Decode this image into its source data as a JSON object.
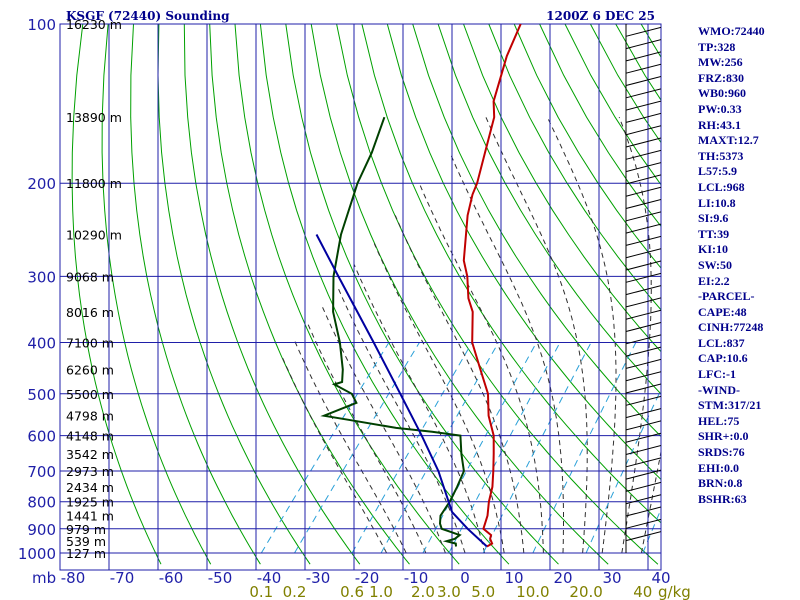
{
  "chart_data": {
    "type": "skew-t",
    "title": "KSGF (72440) Sounding",
    "valid_time": "1200Z  6 DEC 25",
    "pressure_unit_label": "mb",
    "mixing_ratio_unit_label": "g/kg",
    "pressure_ticks": [
      {
        "value": 100,
        "label": "100"
      },
      {
        "value": 200,
        "label": "200"
      },
      {
        "value": 300,
        "label": "300"
      },
      {
        "value": 400,
        "label": "400"
      },
      {
        "value": 500,
        "label": "500"
      },
      {
        "value": 600,
        "label": "600"
      },
      {
        "value": 700,
        "label": "700"
      },
      {
        "value": 800,
        "label": "800"
      },
      {
        "value": 900,
        "label": "900"
      },
      {
        "value": 1000,
        "label": "1000"
      }
    ],
    "temperature_ticks": [
      {
        "value": -80,
        "label": "-80"
      },
      {
        "value": -70,
        "label": "-70"
      },
      {
        "value": -60,
        "label": "-60"
      },
      {
        "value": -50,
        "label": "-50"
      },
      {
        "value": -40,
        "label": "-40"
      },
      {
        "value": -30,
        "label": "-30"
      },
      {
        "value": -20,
        "label": "-20"
      },
      {
        "value": -10,
        "label": "-10"
      },
      {
        "value": 0,
        "label": "0"
      },
      {
        "value": 10,
        "label": "10"
      },
      {
        "value": 20,
        "label": "20"
      },
      {
        "value": 30,
        "label": "30"
      },
      {
        "value": 40,
        "label": "40"
      }
    ],
    "height_labels": [
      {
        "p": 100,
        "label": "16230 m"
      },
      {
        "p": 150,
        "label": "13890 m"
      },
      {
        "p": 200,
        "label": "11800 m"
      },
      {
        "p": 250,
        "label": "10290 m"
      },
      {
        "p": 300,
        "label": "9068 m"
      },
      {
        "p": 350,
        "label": "8016 m"
      },
      {
        "p": 400,
        "label": "7100 m"
      },
      {
        "p": 450,
        "label": "6260 m"
      },
      {
        "p": 500,
        "label": "5500 m"
      },
      {
        "p": 550,
        "label": "4798 m"
      },
      {
        "p": 600,
        "label": "4148 m"
      },
      {
        "p": 650,
        "label": "3542 m"
      },
      {
        "p": 700,
        "label": "2973 m"
      },
      {
        "p": 750,
        "label": "2434 m"
      },
      {
        "p": 800,
        "label": "1925 m"
      },
      {
        "p": 850,
        "label": "1441 m"
      },
      {
        "p": 900,
        "label": "979 m"
      },
      {
        "p": 950,
        "label": "539 m"
      },
      {
        "p": 1000,
        "label": "127 m"
      }
    ],
    "mixing_ratio_ticks": [
      {
        "value": 0.1,
        "label": "0.1"
      },
      {
        "value": 0.2,
        "label": "0.2"
      },
      {
        "value": 0.6,
        "label": "0.6"
      },
      {
        "value": 1.0,
        "label": "1.0"
      },
      {
        "value": 2.0,
        "label": "2.0"
      },
      {
        "value": 3.0,
        "label": "3.0"
      },
      {
        "value": 5.0,
        "label": "5.0"
      },
      {
        "value": 10.0,
        "label": "10.0"
      },
      {
        "value": 20.0,
        "label": "20.0"
      },
      {
        "value": 40.0,
        "label": "40"
      }
    ],
    "temperature_profile": [
      {
        "p": 972,
        "t": 3.4
      },
      {
        "p": 960,
        "t": 4.0
      },
      {
        "p": 940,
        "t": 2.8
      },
      {
        "p": 925,
        "t": 2.4
      },
      {
        "p": 900,
        "t": -0.2
      },
      {
        "p": 850,
        "t": -1.5
      },
      {
        "p": 800,
        "t": -3.5
      },
      {
        "p": 750,
        "t": -5.2
      },
      {
        "p": 700,
        "t": -7.6
      },
      {
        "p": 650,
        "t": -10.3
      },
      {
        "p": 600,
        "t": -13.3
      },
      {
        "p": 550,
        "t": -17.6
      },
      {
        "p": 500,
        "t": -21.3
      },
      {
        "p": 450,
        "t": -26.8
      },
      {
        "p": 400,
        "t": -32.9
      },
      {
        "p": 350,
        "t": -37.8
      },
      {
        "p": 330,
        "t": -40.9
      },
      {
        "p": 300,
        "t": -44.7
      },
      {
        "p": 280,
        "t": -48.0
      },
      {
        "p": 250,
        "t": -51.8
      },
      {
        "p": 230,
        "t": -54.6
      },
      {
        "p": 210,
        "t": -57.0
      },
      {
        "p": 200,
        "t": -57.9
      },
      {
        "p": 175,
        "t": -61.3
      },
      {
        "p": 150,
        "t": -65.2
      },
      {
        "p": 140,
        "t": -67.9
      },
      {
        "p": 125,
        "t": -70.6
      },
      {
        "p": 115,
        "t": -72.6
      },
      {
        "p": 100,
        "t": -75.0
      }
    ],
    "dewpoint_profile": [
      {
        "p": 972,
        "td": -2.9
      },
      {
        "p": 960,
        "td": -3.4
      },
      {
        "p": 950,
        "td": -5.7
      },
      {
        "p": 940,
        "td": -4.4
      },
      {
        "p": 925,
        "td": -4.0
      },
      {
        "p": 910,
        "td": -6.8
      },
      {
        "p": 900,
        "td": -8.7
      },
      {
        "p": 880,
        "td": -9.9
      },
      {
        "p": 850,
        "td": -11.1
      },
      {
        "p": 800,
        "td": -11.5
      },
      {
        "p": 750,
        "td": -12.4
      },
      {
        "p": 700,
        "td": -13.6
      },
      {
        "p": 650,
        "td": -16.9
      },
      {
        "p": 600,
        "td": -20.1
      },
      {
        "p": 590,
        "td": -26.5
      },
      {
        "p": 580,
        "td": -34.5
      },
      {
        "p": 560,
        "td": -45.5
      },
      {
        "p": 550,
        "td": -51.2
      },
      {
        "p": 520,
        "td": -46.7
      },
      {
        "p": 500,
        "td": -49.1
      },
      {
        "p": 480,
        "td": -54.2
      },
      {
        "p": 475,
        "td": -53.0
      },
      {
        "p": 450,
        "td": -54.9
      },
      {
        "p": 400,
        "td": -59.9
      },
      {
        "p": 350,
        "td": -66.3
      },
      {
        "p": 300,
        "td": -72.0
      },
      {
        "p": 250,
        "td": -77.3
      },
      {
        "p": 200,
        "td": -82.3
      },
      {
        "p": 175,
        "td": -84.4
      },
      {
        "p": 150,
        "td": -87.6
      }
    ],
    "parcel_path": [
      {
        "p": 972,
        "t": 3.4
      },
      {
        "p": 900,
        "t": -3.4
      },
      {
        "p": 837,
        "t": -9.3
      },
      {
        "p": 700,
        "t": -18.8
      },
      {
        "p": 600,
        "t": -28.0
      },
      {
        "p": 500,
        "t": -39.2
      },
      {
        "p": 400,
        "t": -53.0
      },
      {
        "p": 300,
        "t": -71.0
      },
      {
        "p": 250,
        "t": -82.3
      }
    ],
    "indices": [
      "WMO:72440",
      "TP:328",
      "MW:256",
      "FRZ:830",
      "WB0:960",
      "PW:0.33",
      "RH:43.1",
      "MAXT:12.7",
      "TH:5373",
      "L57:5.9",
      "LCL:968",
      "LI:10.8",
      "SI:9.6",
      "TT:39",
      "KI:10",
      "SW:50",
      "EI:2.2",
      "-PARCEL-",
      "CAPE:48",
      "CINH:77248",
      "LCL:837",
      "CAP:10.6",
      "LFC:-1",
      "-WIND-",
      "STM:317/21",
      "HEL:75",
      "SHR+:0.0",
      "SRDS:76",
      "EHI:0.0",
      "BRN:0.8",
      "BSHR:63"
    ],
    "colors": {
      "grid": "#1f1fa8",
      "dry_adiabats": "#00a000",
      "moist_adiabats": "#303030",
      "mixing_ratio_lines": "#2aa0d8",
      "temperature": "#c00000",
      "dewpoint": "#004000",
      "parcel": "#0000a0",
      "text": "#00008b",
      "mixing_ratio_labels": "#808000",
      "wind_barbs": "#000000"
    }
  }
}
